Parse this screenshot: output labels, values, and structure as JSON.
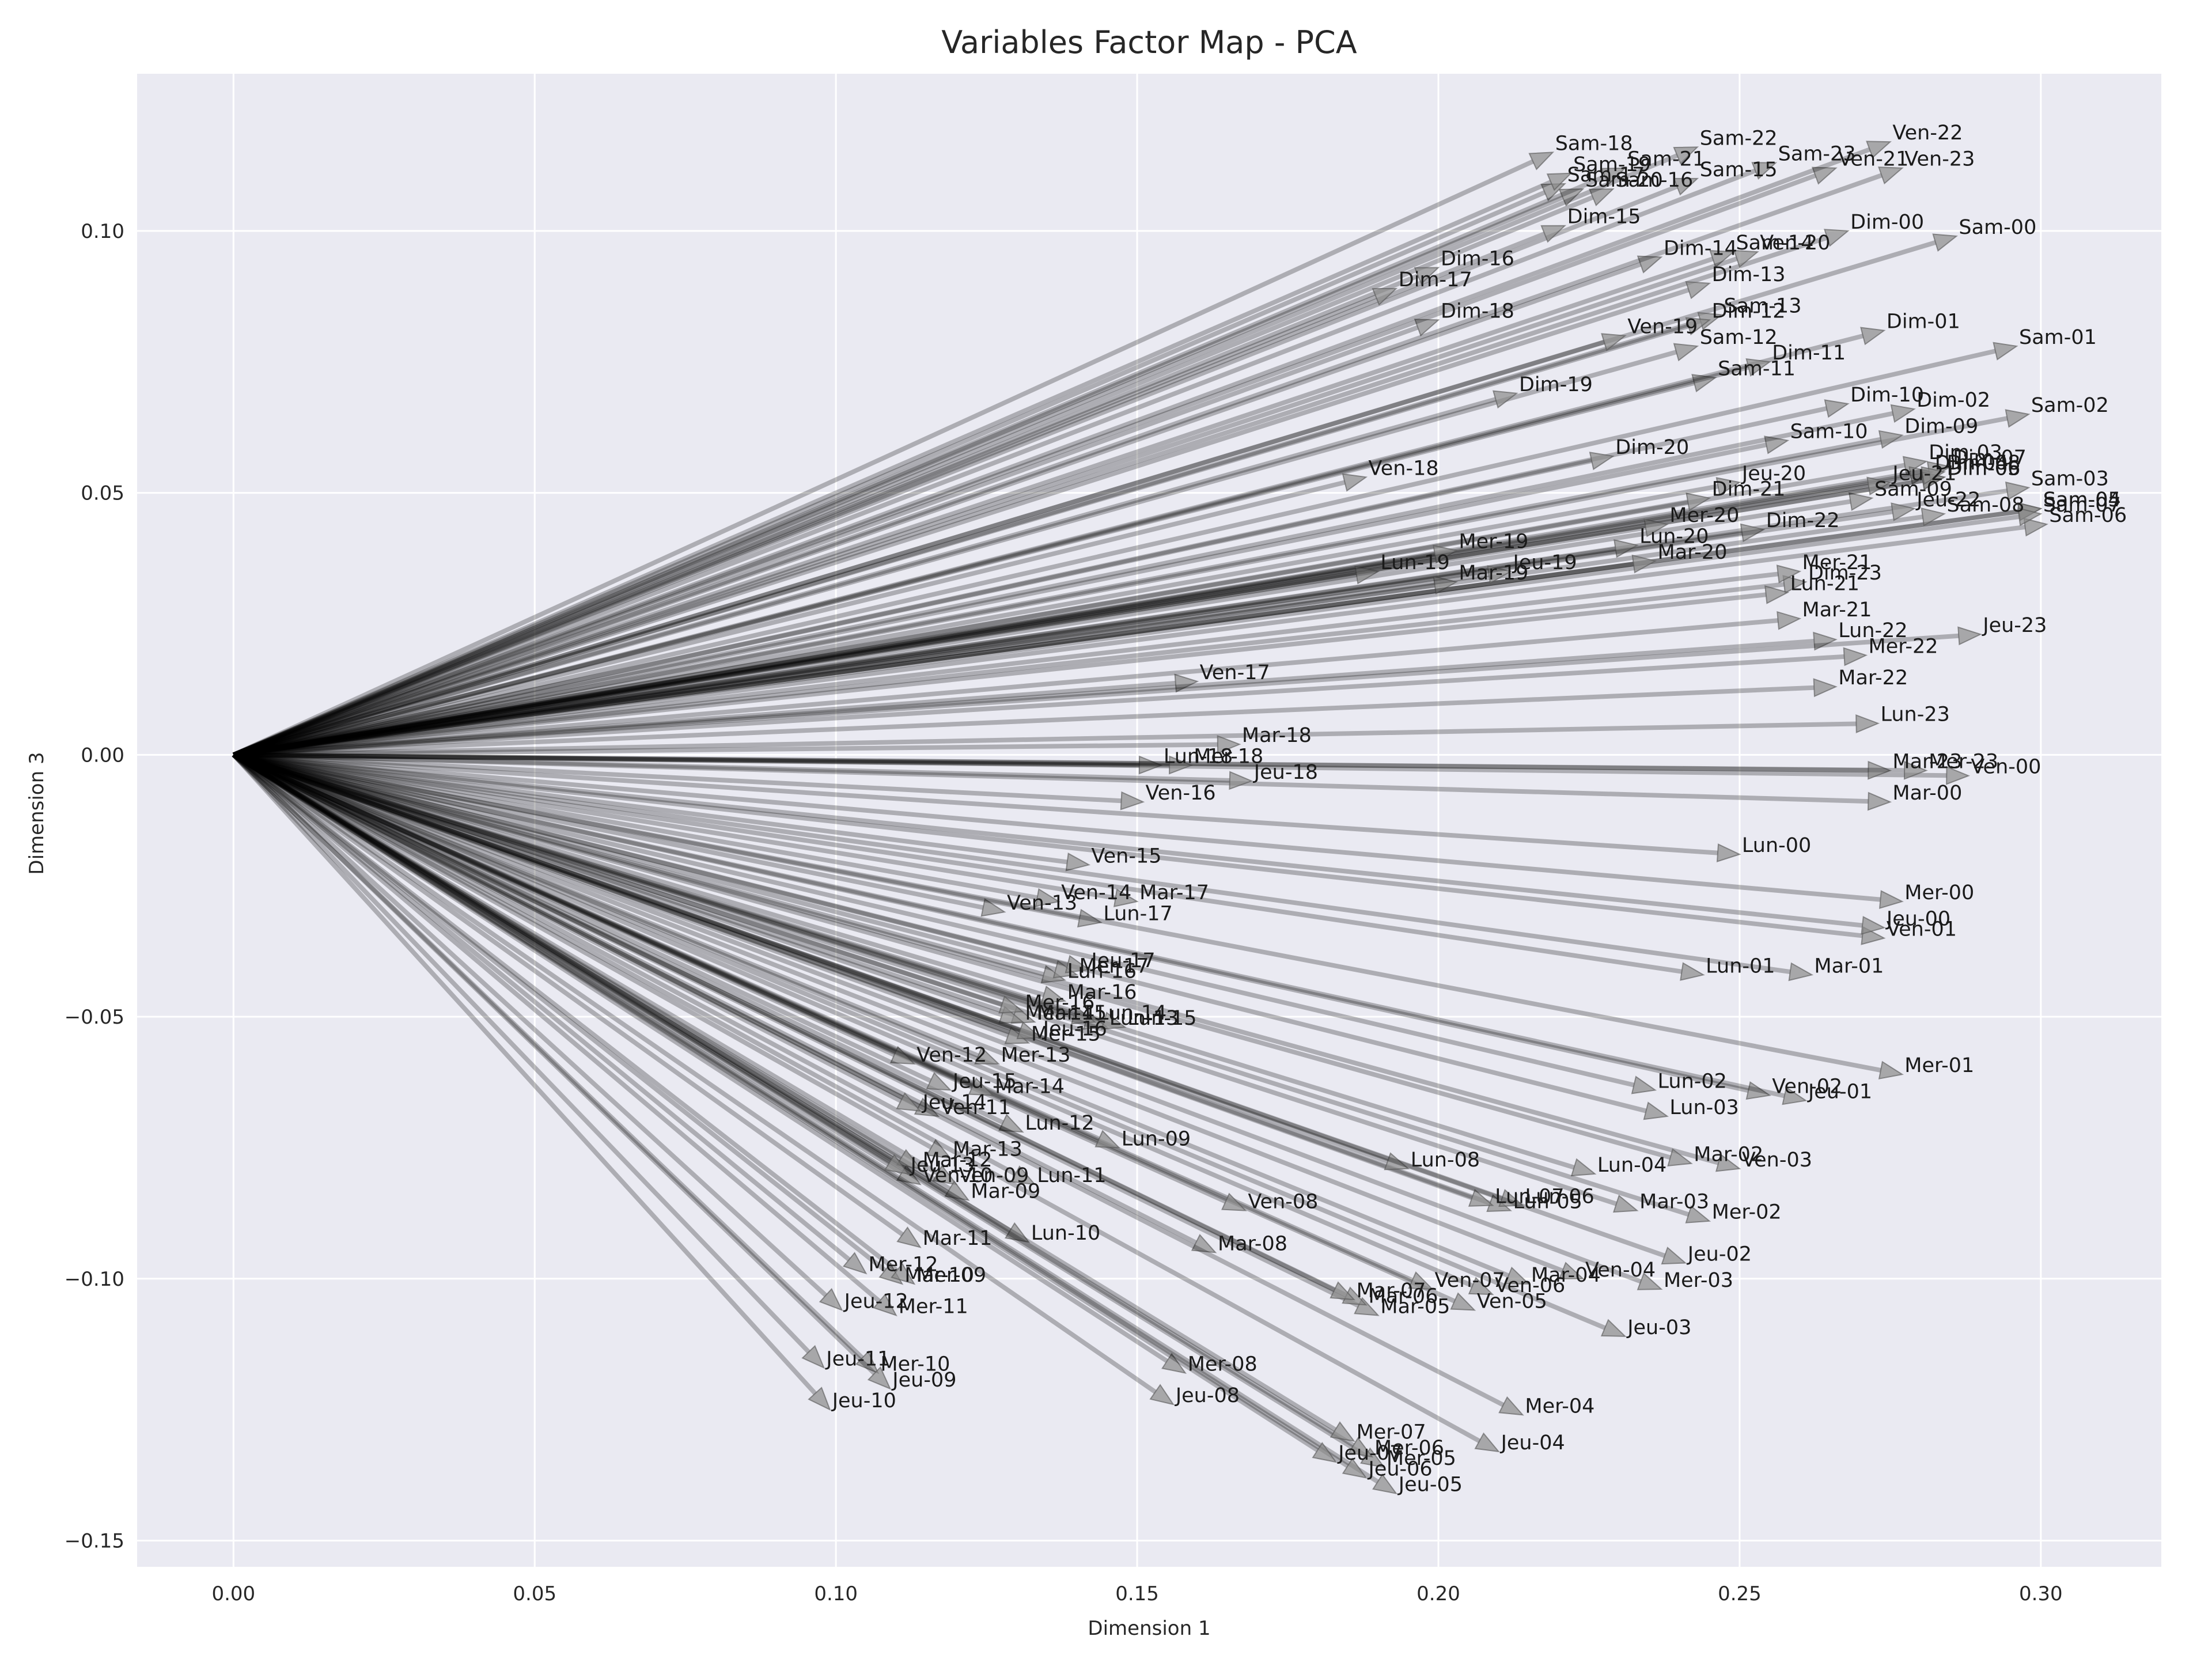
{
  "chart_data": {
    "type": "vector-map",
    "title": "Variables Factor Map - PCA",
    "xlabel": "Dimension 1",
    "ylabel": "Dimension 3",
    "xlim": [
      -0.016,
      0.32
    ],
    "ylim": [
      -0.155,
      0.13
    ],
    "xticks": [
      0.0,
      0.05,
      0.1,
      0.15,
      0.2,
      0.25,
      0.3
    ],
    "yticks": [
      0.1,
      0.05,
      0.0,
      -0.05,
      -0.1,
      -0.15
    ],
    "xtick_labels": [
      "0.00",
      "0.05",
      "0.10",
      "0.15",
      "0.20",
      "0.25",
      "0.30"
    ],
    "ytick_labels": [
      "0.10",
      "0.05",
      "0.00",
      "−0.05",
      "−0.10",
      "−0.15"
    ],
    "grid": true,
    "colors": {
      "background": "#eaeaf2",
      "grid": "#ffffff",
      "vector": "#000000",
      "text": "#262626"
    },
    "vectors": [
      {
        "label": "Sam-00",
        "x": 0.286,
        "y": 0.099
      },
      {
        "label": "Sam-01",
        "x": 0.296,
        "y": 0.078
      },
      {
        "label": "Sam-02",
        "x": 0.298,
        "y": 0.065
      },
      {
        "label": "Sam-03",
        "x": 0.298,
        "y": 0.051
      },
      {
        "label": "Sam-04",
        "x": 0.3,
        "y": 0.047
      },
      {
        "label": "Sam-05",
        "x": 0.3,
        "y": 0.047
      },
      {
        "label": "Sam-06",
        "x": 0.301,
        "y": 0.044
      },
      {
        "label": "Sam-07",
        "x": 0.3,
        "y": 0.046
      },
      {
        "label": "Sam-08",
        "x": 0.284,
        "y": 0.046
      },
      {
        "label": "Sam-09",
        "x": 0.272,
        "y": 0.049
      },
      {
        "label": "Sam-10",
        "x": 0.258,
        "y": 0.06
      },
      {
        "label": "Sam-11",
        "x": 0.246,
        "y": 0.072
      },
      {
        "label": "Sam-12",
        "x": 0.243,
        "y": 0.078
      },
      {
        "label": "Sam-13",
        "x": 0.247,
        "y": 0.084
      },
      {
        "label": "Sam-14",
        "x": 0.249,
        "y": 0.096
      },
      {
        "label": "Sam-15",
        "x": 0.243,
        "y": 0.11
      },
      {
        "label": "Sam-16",
        "x": 0.229,
        "y": 0.108
      },
      {
        "label": "Sam-17",
        "x": 0.221,
        "y": 0.109
      },
      {
        "label": "Sam-18",
        "x": 0.219,
        "y": 0.115
      },
      {
        "label": "Sam-19",
        "x": 0.222,
        "y": 0.111
      },
      {
        "label": "Sam-20",
        "x": 0.224,
        "y": 0.108
      },
      {
        "label": "Sam-21",
        "x": 0.231,
        "y": 0.112
      },
      {
        "label": "Sam-22",
        "x": 0.243,
        "y": 0.116
      },
      {
        "label": "Sam-23",
        "x": 0.256,
        "y": 0.113
      },
      {
        "label": "Dim-00",
        "x": 0.268,
        "y": 0.1
      },
      {
        "label": "Dim-01",
        "x": 0.274,
        "y": 0.081
      },
      {
        "label": "Dim-02",
        "x": 0.279,
        "y": 0.066
      },
      {
        "label": "Dim-03",
        "x": 0.281,
        "y": 0.056
      },
      {
        "label": "Dim-04",
        "x": 0.282,
        "y": 0.054
      },
      {
        "label": "Dim-05",
        "x": 0.284,
        "y": 0.053
      },
      {
        "label": "Dim-06",
        "x": 0.284,
        "y": 0.053
      },
      {
        "label": "Dim-07",
        "x": 0.285,
        "y": 0.055
      },
      {
        "label": "Dim-08",
        "x": 0.284,
        "y": 0.054
      },
      {
        "label": "Dim-09",
        "x": 0.277,
        "y": 0.061
      },
      {
        "label": "Dim-10",
        "x": 0.268,
        "y": 0.067
      },
      {
        "label": "Dim-11",
        "x": 0.255,
        "y": 0.075
      },
      {
        "label": "Dim-12",
        "x": 0.245,
        "y": 0.083
      },
      {
        "label": "Dim-13",
        "x": 0.245,
        "y": 0.09
      },
      {
        "label": "Dim-14",
        "x": 0.237,
        "y": 0.095
      },
      {
        "label": "Dim-15",
        "x": 0.221,
        "y": 0.101
      },
      {
        "label": "Dim-16",
        "x": 0.2,
        "y": 0.093
      },
      {
        "label": "Dim-17",
        "x": 0.193,
        "y": 0.089
      },
      {
        "label": "Dim-18",
        "x": 0.2,
        "y": 0.083
      },
      {
        "label": "Dim-19",
        "x": 0.213,
        "y": 0.069
      },
      {
        "label": "Dim-20",
        "x": 0.229,
        "y": 0.057
      },
      {
        "label": "Dim-21",
        "x": 0.245,
        "y": 0.049
      },
      {
        "label": "Dim-22",
        "x": 0.254,
        "y": 0.043
      },
      {
        "label": "Dim-23",
        "x": 0.261,
        "y": 0.033
      },
      {
        "label": "Ven-00",
        "x": 0.288,
        "y": -0.004
      },
      {
        "label": "Ven-01",
        "x": 0.274,
        "y": -0.035
      },
      {
        "label": "Ven-02",
        "x": 0.255,
        "y": -0.065
      },
      {
        "label": "Ven-03",
        "x": 0.25,
        "y": -0.079
      },
      {
        "label": "Ven-04",
        "x": 0.224,
        "y": -0.1
      },
      {
        "label": "Ven-05",
        "x": 0.206,
        "y": -0.106
      },
      {
        "label": "Ven-06",
        "x": 0.209,
        "y": -0.103
      },
      {
        "label": "Ven-07",
        "x": 0.199,
        "y": -0.102
      },
      {
        "label": "Ven-08",
        "x": 0.168,
        "y": -0.087
      },
      {
        "label": "Ven-09",
        "x": 0.12,
        "y": -0.082
      },
      {
        "label": "Ven-10",
        "x": 0.114,
        "y": -0.082
      },
      {
        "label": "Ven-11",
        "x": 0.117,
        "y": -0.069
      },
      {
        "label": "Ven-12",
        "x": 0.113,
        "y": -0.059
      },
      {
        "label": "Ven-13",
        "x": 0.128,
        "y": -0.03
      },
      {
        "label": "Ven-14",
        "x": 0.137,
        "y": -0.028
      },
      {
        "label": "Ven-15",
        "x": 0.142,
        "y": -0.021
      },
      {
        "label": "Ven-16",
        "x": 0.151,
        "y": -0.009
      },
      {
        "label": "Ven-17",
        "x": 0.16,
        "y": 0.014
      },
      {
        "label": "Ven-18",
        "x": 0.188,
        "y": 0.053
      },
      {
        "label": "Ven-19",
        "x": 0.231,
        "y": 0.08
      },
      {
        "label": "Ven-20",
        "x": 0.253,
        "y": 0.096
      },
      {
        "label": "Ven-21",
        "x": 0.266,
        "y": 0.112
      },
      {
        "label": "Ven-22",
        "x": 0.275,
        "y": 0.117
      },
      {
        "label": "Ven-23",
        "x": 0.277,
        "y": 0.112
      },
      {
        "label": "Lun-00",
        "x": 0.25,
        "y": -0.019
      },
      {
        "label": "Lun-01",
        "x": 0.244,
        "y": -0.042
      },
      {
        "label": "Lun-02",
        "x": 0.236,
        "y": -0.064
      },
      {
        "label": "Lun-03",
        "x": 0.238,
        "y": -0.069
      },
      {
        "label": "Lun-04",
        "x": 0.226,
        "y": -0.08
      },
      {
        "label": "Lun-05",
        "x": 0.212,
        "y": -0.087
      },
      {
        "label": "Lun-06",
        "x": 0.214,
        "y": -0.086
      },
      {
        "label": "Lun-07",
        "x": 0.209,
        "y": -0.086
      },
      {
        "label": "Lun-08",
        "x": 0.195,
        "y": -0.079
      },
      {
        "label": "Lun-09",
        "x": 0.147,
        "y": -0.075
      },
      {
        "label": "Lun-10",
        "x": 0.132,
        "y": -0.093
      },
      {
        "label": "Lun-11",
        "x": 0.133,
        "y": -0.082
      },
      {
        "label": "Lun-12",
        "x": 0.131,
        "y": -0.072
      },
      {
        "label": "Lun-13",
        "x": 0.145,
        "y": -0.052
      },
      {
        "label": "Lun-14",
        "x": 0.143,
        "y": -0.051
      },
      {
        "label": "Lun-15",
        "x": 0.148,
        "y": -0.052
      },
      {
        "label": "Lun-16",
        "x": 0.138,
        "y": -0.043
      },
      {
        "label": "Lun-17",
        "x": 0.144,
        "y": -0.032
      },
      {
        "label": "Lun-18",
        "x": 0.154,
        "y": -0.002
      },
      {
        "label": "Lun-19",
        "x": 0.19,
        "y": 0.035
      },
      {
        "label": "Lun-20",
        "x": 0.233,
        "y": 0.04
      },
      {
        "label": "Lun-21",
        "x": 0.258,
        "y": 0.031
      },
      {
        "label": "Lun-22",
        "x": 0.266,
        "y": 0.022
      },
      {
        "label": "Lun-23",
        "x": 0.273,
        "y": 0.006
      },
      {
        "label": "Mar-00",
        "x": 0.275,
        "y": -0.009
      },
      {
        "label": "Mar-01",
        "x": 0.262,
        "y": -0.042
      },
      {
        "label": "Mar-02",
        "x": 0.242,
        "y": -0.078
      },
      {
        "label": "Mar-03",
        "x": 0.233,
        "y": -0.087
      },
      {
        "label": "Mar-04",
        "x": 0.215,
        "y": -0.101
      },
      {
        "label": "Mar-05",
        "x": 0.19,
        "y": -0.107
      },
      {
        "label": "Mar-06",
        "x": 0.188,
        "y": -0.105
      },
      {
        "label": "Mar-07",
        "x": 0.186,
        "y": -0.104
      },
      {
        "label": "Mar-08",
        "x": 0.163,
        "y": -0.095
      },
      {
        "label": "Mar-09",
        "x": 0.122,
        "y": -0.085
      },
      {
        "label": "Mar-10",
        "x": 0.111,
        "y": -0.101
      },
      {
        "label": "Mar-11",
        "x": 0.114,
        "y": -0.094
      },
      {
        "label": "Mar-12",
        "x": 0.114,
        "y": -0.079
      },
      {
        "label": "Mar-13",
        "x": 0.119,
        "y": -0.077
      },
      {
        "label": "Mar-14",
        "x": 0.126,
        "y": -0.065
      },
      {
        "label": "Mar-15",
        "x": 0.133,
        "y": -0.051
      },
      {
        "label": "Mar-16",
        "x": 0.138,
        "y": -0.047
      },
      {
        "label": "Mar-17",
        "x": 0.15,
        "y": -0.028
      },
      {
        "label": "Mar-18",
        "x": 0.167,
        "y": 0.002
      },
      {
        "label": "Mar-19",
        "x": 0.203,
        "y": 0.033
      },
      {
        "label": "Mar-20",
        "x": 0.236,
        "y": 0.037
      },
      {
        "label": "Mar-21",
        "x": 0.26,
        "y": 0.026
      },
      {
        "label": "Mar-22",
        "x": 0.266,
        "y": 0.013
      },
      {
        "label": "Mar-23",
        "x": 0.275,
        "y": -0.003
      },
      {
        "label": "Mer-00",
        "x": 0.277,
        "y": -0.028
      },
      {
        "label": "Mer-01",
        "x": 0.277,
        "y": -0.061
      },
      {
        "label": "Mer-02",
        "x": 0.245,
        "y": -0.089
      },
      {
        "label": "Mer-03",
        "x": 0.237,
        "y": -0.102
      },
      {
        "label": "Mer-04",
        "x": 0.214,
        "y": -0.126
      },
      {
        "label": "Mer-05",
        "x": 0.191,
        "y": -0.136
      },
      {
        "label": "Mer-06",
        "x": 0.189,
        "y": -0.134
      },
      {
        "label": "Mer-07",
        "x": 0.186,
        "y": -0.131
      },
      {
        "label": "Mer-08",
        "x": 0.158,
        "y": -0.118
      },
      {
        "label": "Mer-09",
        "x": 0.113,
        "y": -0.101
      },
      {
        "label": "Mer-10",
        "x": 0.107,
        "y": -0.118
      },
      {
        "label": "Mer-11",
        "x": 0.11,
        "y": -0.107
      },
      {
        "label": "Mer-12",
        "x": 0.105,
        "y": -0.099
      },
      {
        "label": "Mer-13",
        "x": 0.127,
        "y": -0.059
      },
      {
        "label": "Mer-14",
        "x": 0.131,
        "y": -0.051
      },
      {
        "label": "Mer-15",
        "x": 0.132,
        "y": -0.055
      },
      {
        "label": "Mer-16",
        "x": 0.131,
        "y": -0.049
      },
      {
        "label": "Mer-17",
        "x": 0.14,
        "y": -0.042
      },
      {
        "label": "Mer-18",
        "x": 0.159,
        "y": -0.002
      },
      {
        "label": "Mer-19",
        "x": 0.203,
        "y": 0.039
      },
      {
        "label": "Mer-20",
        "x": 0.238,
        "y": 0.044
      },
      {
        "label": "Mer-21",
        "x": 0.26,
        "y": 0.035
      },
      {
        "label": "Mer-22",
        "x": 0.271,
        "y": 0.019
      },
      {
        "label": "Mer-23",
        "x": 0.281,
        "y": -0.003
      },
      {
        "label": "Jeu-00",
        "x": 0.274,
        "y": -0.033
      },
      {
        "label": "Jeu-01",
        "x": 0.261,
        "y": -0.066
      },
      {
        "label": "Jeu-02",
        "x": 0.241,
        "y": -0.097
      },
      {
        "label": "Jeu-03",
        "x": 0.231,
        "y": -0.111
      },
      {
        "label": "Jeu-04",
        "x": 0.21,
        "y": -0.133
      },
      {
        "label": "Jeu-05",
        "x": 0.193,
        "y": -0.141
      },
      {
        "label": "Jeu-06",
        "x": 0.188,
        "y": -0.138
      },
      {
        "label": "Jeu-07",
        "x": 0.183,
        "y": -0.135
      },
      {
        "label": "Jeu-08",
        "x": 0.156,
        "y": -0.124
      },
      {
        "label": "Jeu-09",
        "x": 0.109,
        "y": -0.121
      },
      {
        "label": "Jeu-10",
        "x": 0.099,
        "y": -0.125
      },
      {
        "label": "Jeu-11",
        "x": 0.098,
        "y": -0.117
      },
      {
        "label": "Jeu-12",
        "x": 0.101,
        "y": -0.106
      },
      {
        "label": "Jeu-13",
        "x": 0.112,
        "y": -0.08
      },
      {
        "label": "Jeu-14",
        "x": 0.114,
        "y": -0.068
      },
      {
        "label": "Jeu-15",
        "x": 0.119,
        "y": -0.064
      },
      {
        "label": "Jeu-16",
        "x": 0.134,
        "y": -0.054
      },
      {
        "label": "Jeu-17",
        "x": 0.142,
        "y": -0.041
      },
      {
        "label": "Jeu-18",
        "x": 0.169,
        "y": -0.005
      },
      {
        "label": "Jeu-19",
        "x": 0.212,
        "y": 0.035
      },
      {
        "label": "Jeu-20",
        "x": 0.25,
        "y": 0.052
      },
      {
        "label": "Jeu-21",
        "x": 0.275,
        "y": 0.052
      },
      {
        "label": "Jeu-22",
        "x": 0.279,
        "y": 0.047
      },
      {
        "label": "Jeu-23",
        "x": 0.29,
        "y": 0.023
      }
    ]
  }
}
